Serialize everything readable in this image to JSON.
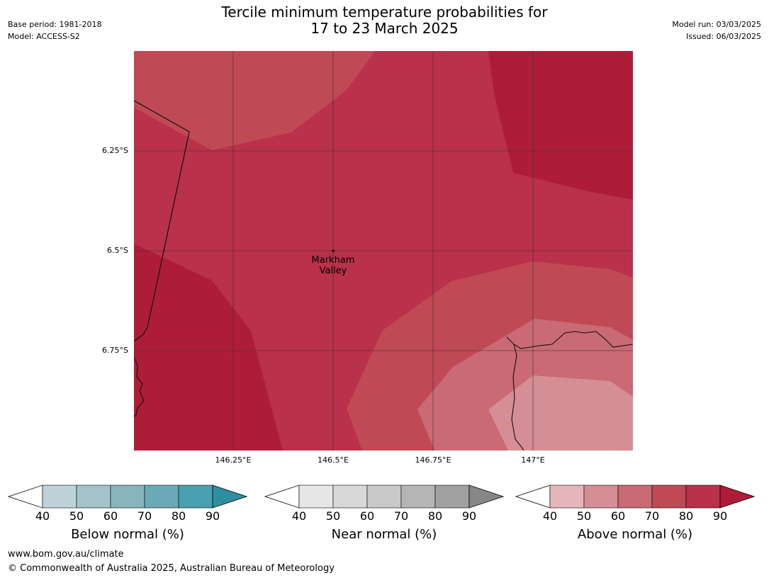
{
  "header": {
    "title_line1": "Tercile minimum temperature probabilities for",
    "title_line2": "17 to 23 March 2025",
    "base_period": "Base period: 1981-2018",
    "model": "Model: ACCESS-S2",
    "model_run": "Model run: 03/03/2025",
    "issued": "Issued: 06/03/2025"
  },
  "map": {
    "lat_labels": [
      "6.25°S",
      "6.5°S",
      "6.75°S"
    ],
    "lon_labels": [
      "146.25°E",
      "146.5°E",
      "146.75°E",
      "147°E"
    ],
    "place": {
      "name_line1": "Markham",
      "name_line2": "Valley"
    },
    "fill_colors": {
      "above_50": "#d58e96",
      "above_60": "#c96a74",
      "above_70": "#bf4a55",
      "above_80": "#b9314a",
      "above_90": "#ae1d38"
    }
  },
  "legends": [
    {
      "title": "Below normal (%)",
      "ticks": [
        "40",
        "50",
        "60",
        "70",
        "80",
        "90"
      ],
      "colors": [
        "#bdd3d9",
        "#a4c3c9",
        "#88b4bf",
        "#6aa9b5",
        "#49a0ae",
        "#2e8f9e"
      ]
    },
    {
      "title": "Near normal (%)",
      "ticks": [
        "40",
        "50",
        "60",
        "70",
        "80",
        "90"
      ],
      "colors": [
        "#e6e6e6",
        "#d8d8d8",
        "#c9c9c9",
        "#b5b5b5",
        "#a0a0a0",
        "#878787"
      ]
    },
    {
      "title": "Above normal (%)",
      "ticks": [
        "40",
        "50",
        "60",
        "70",
        "80",
        "90"
      ],
      "colors": [
        "#e3b6bb",
        "#d58e96",
        "#c96a74",
        "#bf4a55",
        "#b9314a",
        "#ae1d38"
      ]
    }
  ],
  "footer": {
    "url": "www.bom.gov.au/climate",
    "copyright": "© Commonwealth of Australia 2025, Australian Bureau of Meteorology"
  }
}
